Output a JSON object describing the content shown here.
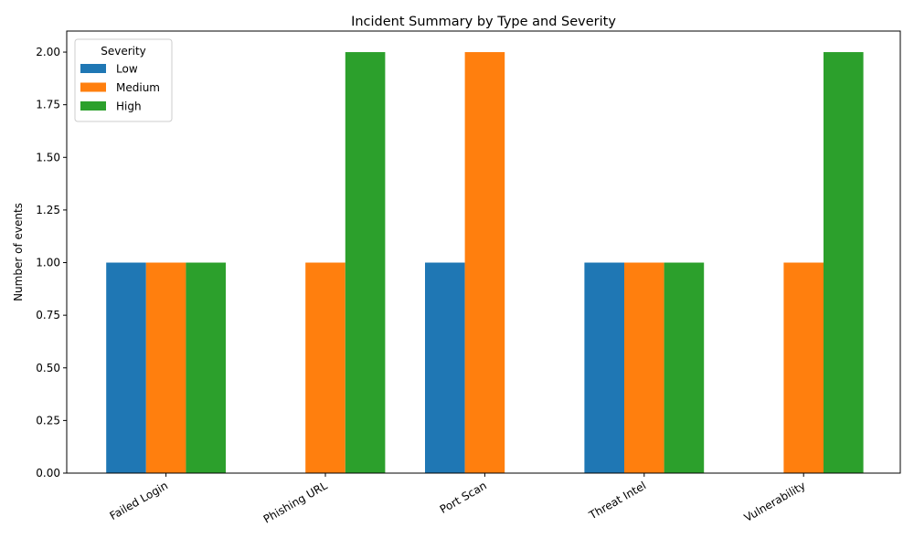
{
  "chart_data": {
    "type": "bar",
    "title": "Incident Summary by Type and Severity",
    "xlabel": "",
    "ylabel": "Number of events",
    "categories": [
      "Failed Login",
      "Phishing URL",
      "Port Scan",
      "Threat Intel",
      "Vulnerability"
    ],
    "series": [
      {
        "name": "Low",
        "color": "#1f77b4",
        "values": [
          1,
          0,
          1,
          1,
          0
        ]
      },
      {
        "name": "Medium",
        "color": "#ff7f0e",
        "values": [
          1,
          1,
          2,
          1,
          1
        ]
      },
      {
        "name": "High",
        "color": "#2ca02c",
        "values": [
          1,
          2,
          0,
          1,
          2
        ]
      }
    ],
    "ylim": [
      0,
      2.1
    ],
    "yticks": [
      "0.00",
      "0.25",
      "0.50",
      "0.75",
      "1.00",
      "1.25",
      "1.50",
      "1.75",
      "2.00"
    ],
    "legend": {
      "title": "Severity",
      "placement": "top-left"
    },
    "grid": false
  }
}
